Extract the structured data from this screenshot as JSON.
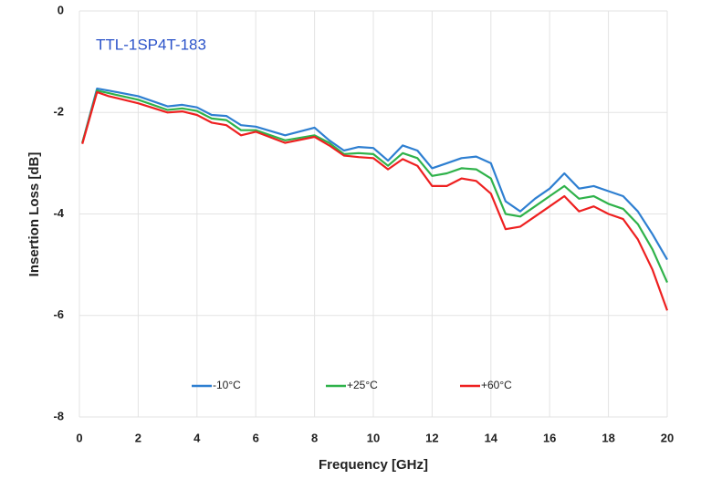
{
  "chart_data": {
    "type": "line",
    "annotation": "TTL-1SP4T-183",
    "x_label": "Frequency [GHz]",
    "y_label": "Insertion Loss [dB]",
    "x": [
      0.1,
      0.6,
      1,
      2,
      3,
      3.5,
      4,
      4.5,
      5,
      5.5,
      6,
      7,
      8,
      8.5,
      9,
      9.5,
      10,
      10.5,
      11,
      11.5,
      12,
      12.5,
      13,
      13.5,
      14,
      14.5,
      15,
      15.5,
      16,
      16.5,
      17,
      17.5,
      18,
      18.5,
      19,
      19.5,
      20
    ],
    "series": [
      {
        "name": "-10°C",
        "color": "#2e7fd1",
        "values": [
          -2.6,
          -1.53,
          -1.57,
          -1.68,
          -1.88,
          -1.85,
          -1.9,
          -2.05,
          -2.07,
          -2.25,
          -2.28,
          -2.45,
          -2.3,
          -2.55,
          -2.75,
          -2.68,
          -2.7,
          -2.95,
          -2.65,
          -2.75,
          -3.1,
          -3.0,
          -2.9,
          -2.87,
          -3.0,
          -3.75,
          -3.95,
          -3.7,
          -3.5,
          -3.2,
          -3.5,
          -3.45,
          -3.55,
          -3.65,
          -3.95,
          -4.4,
          -4.9
        ]
      },
      {
        "name": "+25°C",
        "color": "#2fb24a",
        "values": [
          -2.6,
          -1.57,
          -1.62,
          -1.75,
          -1.95,
          -1.92,
          -1.97,
          -2.12,
          -2.15,
          -2.35,
          -2.35,
          -2.55,
          -2.45,
          -2.6,
          -2.82,
          -2.8,
          -2.82,
          -3.05,
          -2.8,
          -2.9,
          -3.25,
          -3.2,
          -3.1,
          -3.12,
          -3.3,
          -4.0,
          -4.05,
          -3.85,
          -3.65,
          -3.45,
          -3.7,
          -3.65,
          -3.8,
          -3.9,
          -4.2,
          -4.7,
          -5.35
        ]
      },
      {
        "name": "+60°C",
        "color": "#ee2020",
        "values": [
          -2.62,
          -1.6,
          -1.68,
          -1.82,
          -2.0,
          -1.98,
          -2.05,
          -2.2,
          -2.25,
          -2.45,
          -2.38,
          -2.6,
          -2.48,
          -2.65,
          -2.85,
          -2.88,
          -2.9,
          -3.12,
          -2.92,
          -3.05,
          -3.45,
          -3.45,
          -3.3,
          -3.35,
          -3.6,
          -4.3,
          -4.25,
          -4.05,
          -3.85,
          -3.65,
          -3.95,
          -3.85,
          -4.0,
          -4.1,
          -4.5,
          -5.1,
          -5.9
        ]
      }
    ],
    "xlim": [
      0,
      20
    ],
    "xticks": [
      0,
      2,
      4,
      6,
      8,
      10,
      12,
      14,
      16,
      18,
      20
    ],
    "ylim": [
      -8,
      0
    ],
    "yticks": [
      0,
      -2,
      -4,
      -6,
      -8
    ],
    "grid": true,
    "legend": "bottom"
  }
}
